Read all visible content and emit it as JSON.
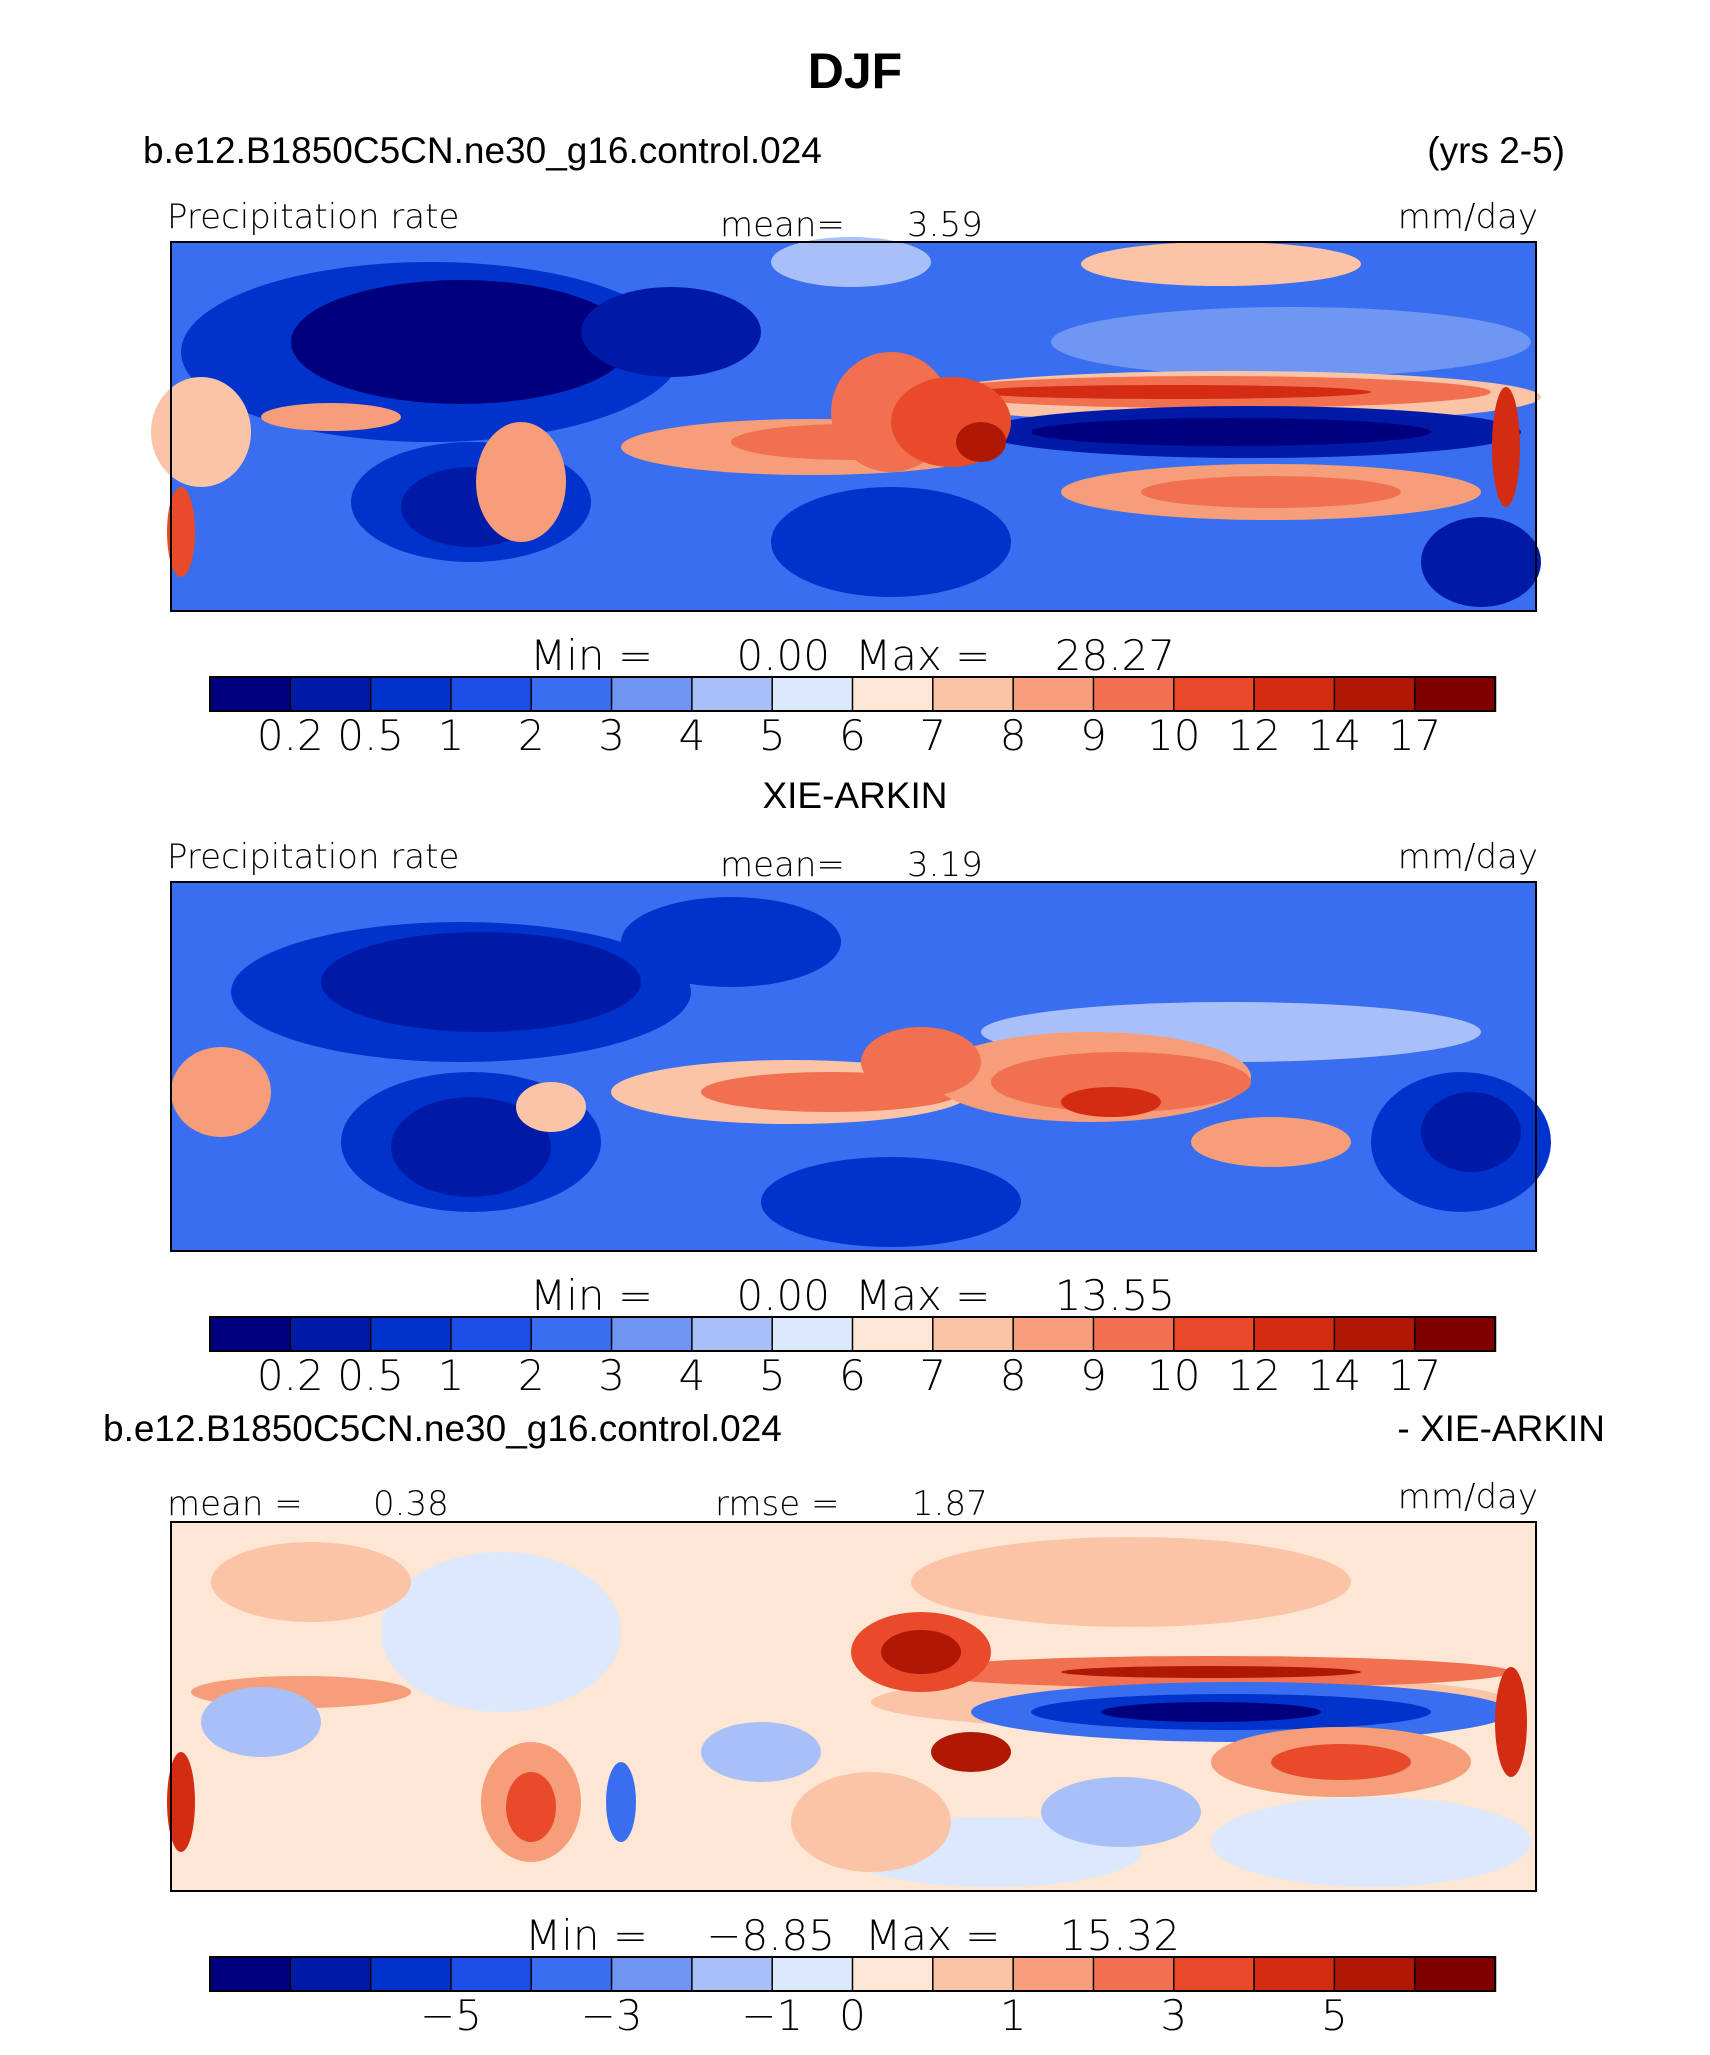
{
  "figure": {
    "title": "DJF",
    "colors": [
      "#00007f",
      "#001aa8",
      "#0033cc",
      "#1a4ee6",
      "#3a6ef0",
      "#6e96f2",
      "#a8c0f7",
      "#dce8fb",
      "#fde6d3",
      "#fbc4a6",
      "#f69d7a",
      "#f07050",
      "#e84a2a",
      "#d42c12",
      "#b01806",
      "#800000"
    ]
  },
  "chart_data": [
    {
      "type": "heatmap",
      "header_left": "b.e12.B1850C5CN.ne30_g16.control.024",
      "header_right": "(yrs 2-5)",
      "label_left": "Precipitation rate",
      "label_center_key": "mean=",
      "label_center_value": "3.59",
      "label_right": "mm/day",
      "min_label": "Min =",
      "min_value": "0.00",
      "max_label": "Max =",
      "max_value": "28.27",
      "colorbar_levels": [
        0.2,
        0.5,
        1,
        2,
        3,
        4,
        5,
        6,
        7,
        8,
        9,
        10,
        12,
        14,
        17
      ],
      "colorbar_tick_labels": [
        "0.2",
        "0.5",
        "1",
        "2",
        "3",
        "4",
        "5",
        "6",
        "7",
        "8",
        "9",
        "10",
        "12",
        "14",
        "17"
      ]
    },
    {
      "type": "heatmap",
      "header_center": "XIE-ARKIN",
      "label_left": "Precipitation rate",
      "label_center_key": "mean=",
      "label_center_value": "3.19",
      "label_right": "mm/day",
      "min_label": "Min =",
      "min_value": "0.00",
      "max_label": "Max =",
      "max_value": "13.55",
      "colorbar_levels": [
        0.2,
        0.5,
        1,
        2,
        3,
        4,
        5,
        6,
        7,
        8,
        9,
        10,
        12,
        14,
        17
      ],
      "colorbar_tick_labels": [
        "0.2",
        "0.5",
        "1",
        "2",
        "3",
        "4",
        "5",
        "6",
        "7",
        "8",
        "9",
        "10",
        "12",
        "14",
        "17"
      ]
    },
    {
      "type": "heatmap",
      "header_left": "b.e12.B1850C5CN.ne30_g16.control.024",
      "header_right": "- XIE-ARKIN",
      "label_left_key": "mean =",
      "label_left_value": "0.38",
      "label_center_key": "rmse =",
      "label_center_value": "1.87",
      "label_right": "mm/day",
      "min_label": "Min =",
      "min_value": "−8.85",
      "max_label": "Max =",
      "max_value": "15.32",
      "colorbar_levels": [
        -7,
        -6,
        -5,
        -4,
        -3,
        -2,
        -1,
        0,
        0.5,
        1,
        2,
        3,
        4,
        5,
        6
      ],
      "colorbar_tick_labels": [
        "",
        "",
        "−5",
        "",
        "−3",
        "",
        "−1",
        "0",
        "",
        "1",
        "",
        "3",
        "",
        "5",
        ""
      ]
    }
  ]
}
